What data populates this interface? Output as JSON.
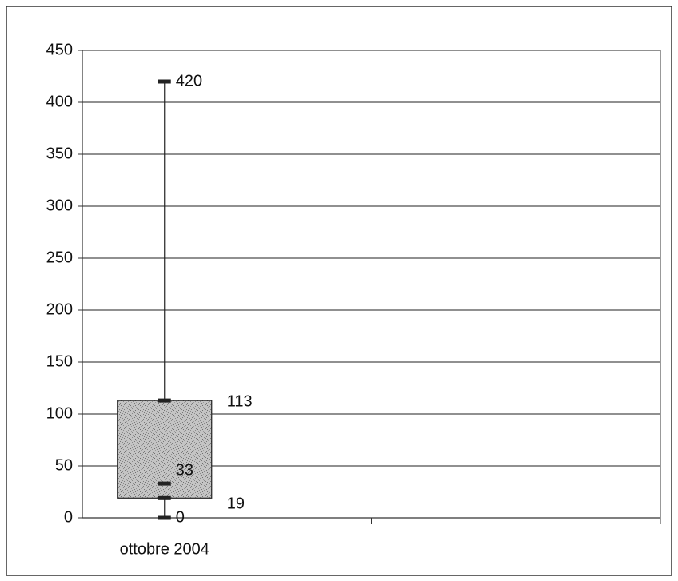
{
  "chart_data": {
    "type": "boxplot",
    "title": "",
    "xlabel": "",
    "ylabel": "",
    "ylim": [
      0,
      450
    ],
    "y_ticks": [
      0,
      50,
      100,
      150,
      200,
      250,
      300,
      350,
      400,
      450
    ],
    "y_tick_labels": [
      "0",
      "50",
      "100",
      "150",
      "200",
      "250",
      "300",
      "350",
      "400",
      "450"
    ],
    "grid": true,
    "legend": "none",
    "categories": [
      "ottobre 2004"
    ],
    "boxes": [
      {
        "category": "ottobre 2004",
        "min": 0,
        "q1": 19,
        "median": 33,
        "q3": 113,
        "max": 420
      }
    ],
    "data_labels": [
      {
        "value": 420,
        "text": "420"
      },
      {
        "value": 113,
        "text": "113"
      },
      {
        "value": 33,
        "text": "33"
      },
      {
        "value": 19,
        "text": "19"
      },
      {
        "value": 0,
        "text": "0"
      }
    ],
    "colors": {
      "box_fill": "#b8b8b8",
      "line": "#222222",
      "grid": "#222222",
      "frame": "#333333"
    }
  }
}
